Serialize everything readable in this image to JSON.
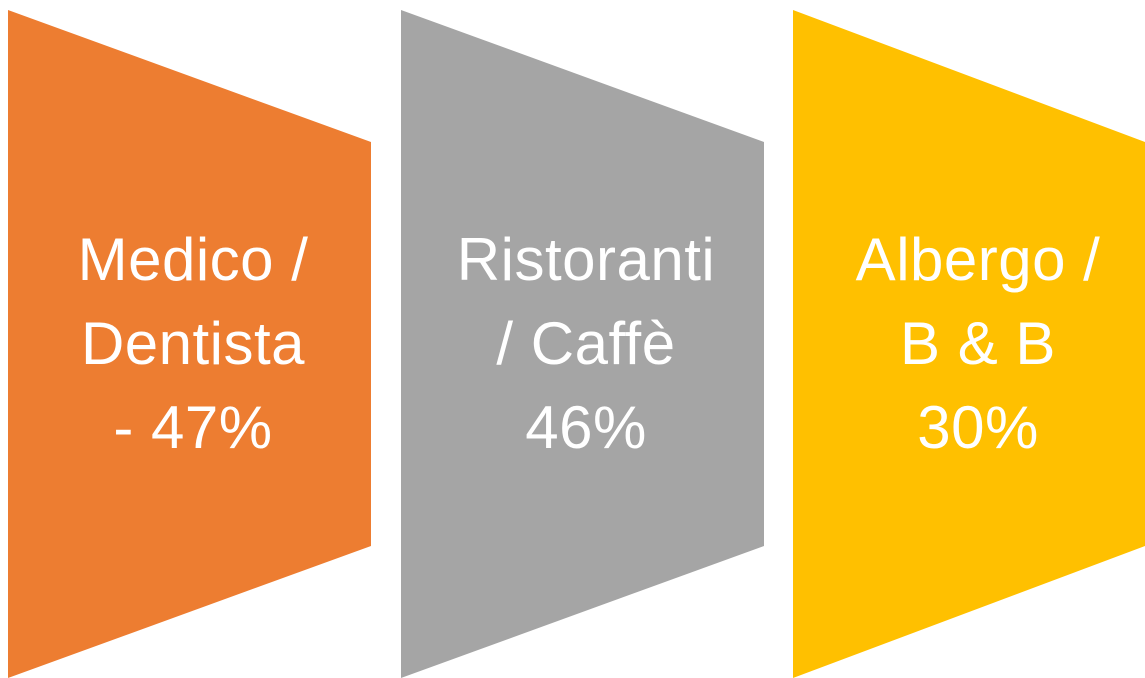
{
  "panels": [
    {
      "id": "medico",
      "color": "#ED7D31",
      "lines": [
        "Medico /",
        "Dentista",
        "- 47%"
      ],
      "percent": 47
    },
    {
      "id": "ristoranti",
      "color": "#A5A5A5",
      "lines": [
        "Ristoranti",
        "/ Caffè",
        "46%"
      ],
      "percent": 46
    },
    {
      "id": "albergo",
      "color": "#FFC000",
      "lines": [
        "Albergo /",
        "B & B",
        "30%"
      ],
      "percent": 30
    }
  ]
}
